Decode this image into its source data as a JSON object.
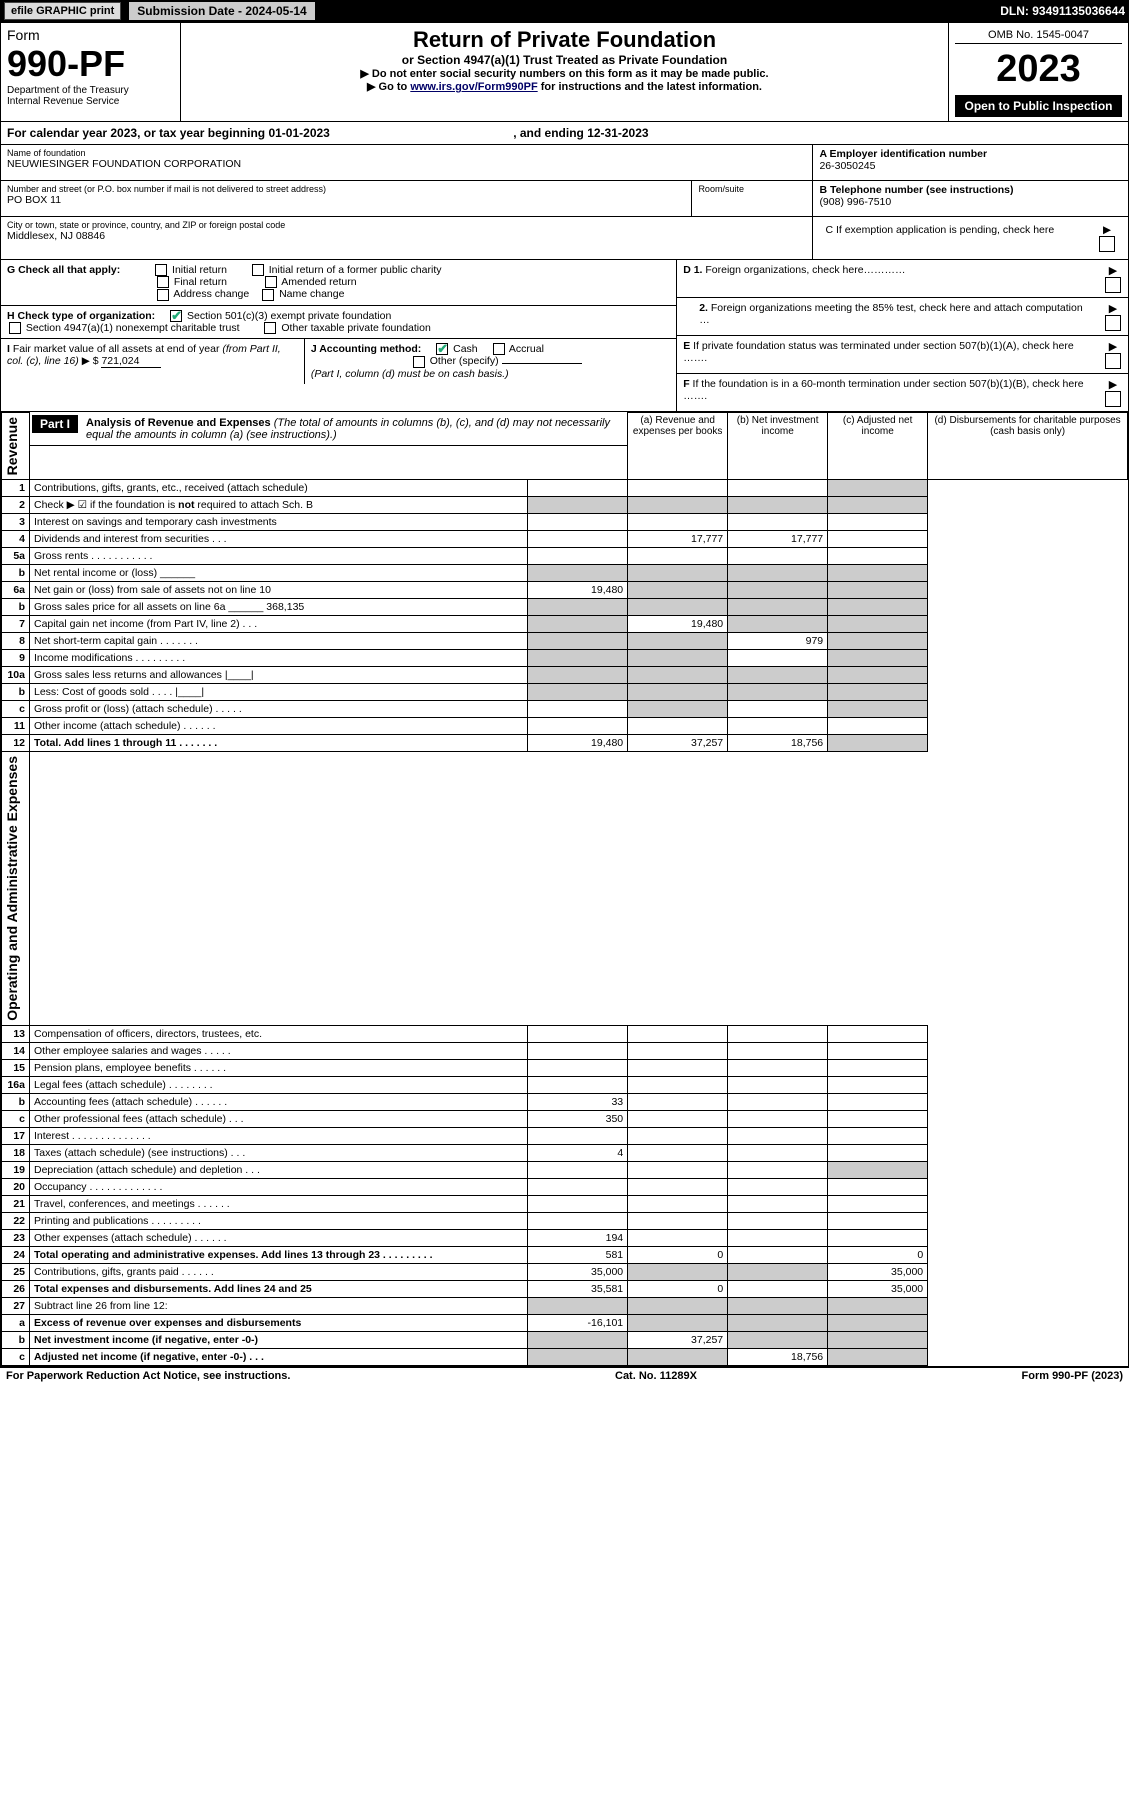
{
  "header": {
    "efile": "efile GRAPHIC print",
    "sub_date_label": "Submission Date - 2024-05-14",
    "dln": "DLN: 93491135036644"
  },
  "form": {
    "word": "Form",
    "number": "990-PF",
    "dept": "Department of the Treasury",
    "irs": "Internal Revenue Service",
    "title": "Return of Private Foundation",
    "subtitle": "or Section 4947(a)(1) Trust Treated as Private Foundation",
    "instr1": "▶ Do not enter social security numbers on this form as it may be made public.",
    "instr2_pre": "▶ Go to ",
    "instr2_link": "www.irs.gov/Form990PF",
    "instr2_post": " for instructions and the latest information.",
    "omb": "OMB No. 1545-0047",
    "year": "2023",
    "open": "Open to Public Inspection"
  },
  "cal": {
    "text_pre": "For calendar year 2023, or tax year beginning ",
    "begin": "01-01-2023",
    "mid": " , and ending ",
    "end": "12-31-2023"
  },
  "entity": {
    "name_label": "Name of foundation",
    "name": "NEUWIESINGER FOUNDATION CORPORATION",
    "addr_label": "Number and street (or P.O. box number if mail is not delivered to street address)",
    "room_label": "Room/suite",
    "addr": "PO BOX 11",
    "city_label": "City or town, state or province, country, and ZIP or foreign postal code",
    "city": "Middlesex, NJ  08846",
    "ein_label": "A Employer identification number",
    "ein": "26-3050245",
    "phone_label": "B Telephone number (see instructions)",
    "phone": "(908) 996-7510",
    "pending_label": "C If exemption application is pending, check here"
  },
  "g": {
    "label": "G Check all that apply:",
    "opts": [
      "Initial return",
      "Initial return of a former public charity",
      "Final return",
      "Amended return",
      "Address change",
      "Name change"
    ]
  },
  "h": {
    "label": "H Check type of organization:",
    "opt1": "Section 501(c)(3) exempt private foundation",
    "opt2": "Section 4947(a)(1) nonexempt charitable trust",
    "opt3": "Other taxable private foundation"
  },
  "i": {
    "label": "I Fair market value of all assets at end of year (from Part II, col. (c), line 16) ▶ $",
    "value": "721,024"
  },
  "j": {
    "label": "J Accounting method:",
    "cash": "Cash",
    "accrual": "Accrual",
    "other": "Other (specify)",
    "note": "(Part I, column (d) must be on cash basis.)"
  },
  "d": {
    "d1": "D 1. Foreign organizations, check here…………",
    "d2": "2. Foreign organizations meeting the 85% test, check here and attach computation …",
    "e": "E If private foundation status was terminated under section 507(b)(1)(A), check here …….",
    "f": "F If the foundation is in a 60-month termination under section 507(b)(1)(B), check here ……."
  },
  "part1": {
    "label": "Part I",
    "title": "Analysis of Revenue and Expenses",
    "note": "(The total of amounts in columns (b), (c), and (d) may not necessarily equal the amounts in column (a) (see instructions).)",
    "cols": {
      "a": "(a) Revenue and expenses per books",
      "b": "(b) Net investment income",
      "c": "(c) Adjusted net income",
      "d": "(d) Disbursements for charitable purposes (cash basis only)"
    }
  },
  "vlabels": {
    "rev": "Revenue",
    "exp": "Operating and Administrative Expenses"
  },
  "rows": [
    {
      "n": "1",
      "d": "Contributions, gifts, grants, etc., received (attach schedule)",
      "a": "",
      "b": "",
      "c": "",
      "dd": "",
      "shade_d": true
    },
    {
      "n": "2",
      "d": "Check ▶ ☑ if the foundation is not required to attach Sch. B",
      "a": "",
      "b": "",
      "c": "",
      "dd": "",
      "shade_all": true,
      "bold_not": true
    },
    {
      "n": "3",
      "d": "Interest on savings and temporary cash investments",
      "a": "",
      "b": "",
      "c": "",
      "dd": ""
    },
    {
      "n": "4",
      "d": "Dividends and interest from securities   .   .   .",
      "a": "",
      "b": "17,777",
      "c": "17,777",
      "dd": ""
    },
    {
      "n": "5a",
      "d": "Gross rents   .   .   .   .   .   .   .   .   .   .   .",
      "a": "",
      "b": "",
      "c": "",
      "dd": ""
    },
    {
      "n": "b",
      "d": "Net rental income or (loss)  ______",
      "a": "",
      "b": "",
      "c": "",
      "dd": "",
      "shade_all": true
    },
    {
      "n": "6a",
      "d": "Net gain or (loss) from sale of assets not on line 10",
      "a": "19,480",
      "b": "",
      "c": "",
      "dd": "",
      "shade_bcd": true
    },
    {
      "n": "b",
      "d": "Gross sales price for all assets on line 6a ______ 368,135",
      "a": "",
      "b": "",
      "c": "",
      "dd": "",
      "shade_all": true
    },
    {
      "n": "7",
      "d": "Capital gain net income (from Part IV, line 2)   .   .   .",
      "a": "",
      "b": "19,480",
      "c": "",
      "dd": "",
      "shade_a": true,
      "shade_cd": true
    },
    {
      "n": "8",
      "d": "Net short-term capital gain   .   .   .   .   .   .   .",
      "a": "",
      "b": "",
      "c": "979",
      "dd": "",
      "shade_ab": true,
      "shade_d": true
    },
    {
      "n": "9",
      "d": "Income modifications   .   .   .   .   .   .   .   .   .",
      "a": "",
      "b": "",
      "c": "",
      "dd": "",
      "shade_ab": true,
      "shade_d": true
    },
    {
      "n": "10a",
      "d": "Gross sales less returns and allowances  |____|",
      "a": "",
      "b": "",
      "c": "",
      "dd": "",
      "shade_all": true
    },
    {
      "n": "b",
      "d": "Less: Cost of goods sold   .   .   .   .  |____|",
      "a": "",
      "b": "",
      "c": "",
      "dd": "",
      "shade_all": true
    },
    {
      "n": "c",
      "d": "Gross profit or (loss) (attach schedule)   .   .   .   .   .",
      "a": "",
      "b": "",
      "c": "",
      "dd": "",
      "shade_b": true,
      "shade_d": true
    },
    {
      "n": "11",
      "d": "Other income (attach schedule)   .   .   .   .   .   .",
      "a": "",
      "b": "",
      "c": "",
      "dd": ""
    },
    {
      "n": "12",
      "d": "Total. Add lines 1 through 11   .   .   .   .   .   .   .",
      "a": "19,480",
      "b": "37,257",
      "c": "18,756",
      "dd": "",
      "bold": true,
      "shade_d": true
    },
    {
      "n": "13",
      "d": "Compensation of officers, directors, trustees, etc.",
      "a": "",
      "b": "",
      "c": "",
      "dd": ""
    },
    {
      "n": "14",
      "d": "Other employee salaries and wages   .   .   .   .   .",
      "a": "",
      "b": "",
      "c": "",
      "dd": ""
    },
    {
      "n": "15",
      "d": "Pension plans, employee benefits   .   .   .   .   .   .",
      "a": "",
      "b": "",
      "c": "",
      "dd": ""
    },
    {
      "n": "16a",
      "d": "Legal fees (attach schedule)   .   .   .   .   .   .   .   .",
      "a": "",
      "b": "",
      "c": "",
      "dd": ""
    },
    {
      "n": "b",
      "d": "Accounting fees (attach schedule)   .   .   .   .   .   .",
      "a": "33",
      "b": "",
      "c": "",
      "dd": ""
    },
    {
      "n": "c",
      "d": "Other professional fees (attach schedule)   .   .   .",
      "a": "350",
      "b": "",
      "c": "",
      "dd": ""
    },
    {
      "n": "17",
      "d": "Interest   .   .   .   .   .   .   .   .   .   .   .   .   .   .",
      "a": "",
      "b": "",
      "c": "",
      "dd": ""
    },
    {
      "n": "18",
      "d": "Taxes (attach schedule) (see instructions)   .   .   .",
      "a": "4",
      "b": "",
      "c": "",
      "dd": ""
    },
    {
      "n": "19",
      "d": "Depreciation (attach schedule) and depletion   .   .   .",
      "a": "",
      "b": "",
      "c": "",
      "dd": "",
      "shade_d": true
    },
    {
      "n": "20",
      "d": "Occupancy   .   .   .   .   .   .   .   .   .   .   .   .   .",
      "a": "",
      "b": "",
      "c": "",
      "dd": ""
    },
    {
      "n": "21",
      "d": "Travel, conferences, and meetings   .   .   .   .   .   .",
      "a": "",
      "b": "",
      "c": "",
      "dd": ""
    },
    {
      "n": "22",
      "d": "Printing and publications   .   .   .   .   .   .   .   .   .",
      "a": "",
      "b": "",
      "c": "",
      "dd": ""
    },
    {
      "n": "23",
      "d": "Other expenses (attach schedule)   .   .   .   .   .   .",
      "a": "194",
      "b": "",
      "c": "",
      "dd": ""
    },
    {
      "n": "24",
      "d": "Total operating and administrative expenses. Add lines 13 through 23   .   .   .   .   .   .   .   .   .",
      "a": "581",
      "b": "0",
      "c": "",
      "dd": "0",
      "bold": true
    },
    {
      "n": "25",
      "d": "Contributions, gifts, grants paid   .   .   .   .   .   .",
      "a": "35,000",
      "b": "",
      "c": "",
      "dd": "35,000",
      "shade_bc": true
    },
    {
      "n": "26",
      "d": "Total expenses and disbursements. Add lines 24 and 25",
      "a": "35,581",
      "b": "0",
      "c": "",
      "dd": "35,000",
      "bold": true
    },
    {
      "n": "27",
      "d": "Subtract line 26 from line 12:",
      "a": "",
      "b": "",
      "c": "",
      "dd": "",
      "shade_all": true
    },
    {
      "n": "a",
      "d": "Excess of revenue over expenses and disbursements",
      "a": "-16,101",
      "b": "",
      "c": "",
      "dd": "",
      "bold": true,
      "shade_bcd": true
    },
    {
      "n": "b",
      "d": "Net investment income (if negative, enter -0-)",
      "a": "",
      "b": "37,257",
      "c": "",
      "dd": "",
      "bold": true,
      "shade_a": true,
      "shade_cd": true
    },
    {
      "n": "c",
      "d": "Adjusted net income (if negative, enter -0-)   .   .   .",
      "a": "",
      "b": "",
      "c": "18,756",
      "dd": "",
      "bold": true,
      "shade_ab": true,
      "shade_d": true
    }
  ],
  "footer": {
    "left": "For Paperwork Reduction Act Notice, see instructions.",
    "mid": "Cat. No. 11289X",
    "right": "Form 990-PF (2023)"
  }
}
